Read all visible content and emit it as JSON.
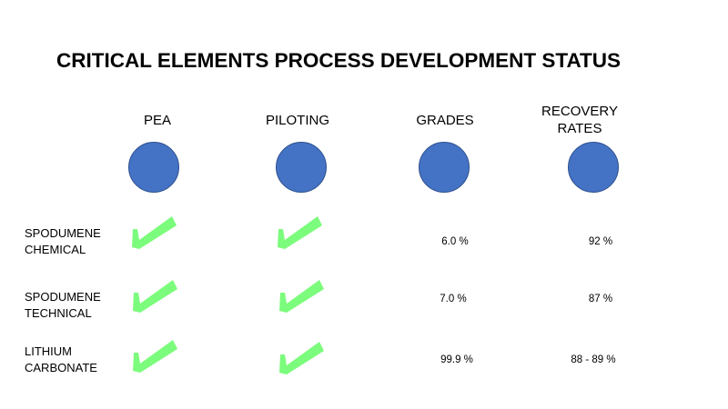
{
  "title": "CRITICAL ELEMENTS PROCESS DEVELOPMENT STATUS",
  "columns": [
    {
      "line1": "PEA",
      "line2": ""
    },
    {
      "line1": "PILOTING",
      "line2": ""
    },
    {
      "line1": "GRADES",
      "line2": ""
    },
    {
      "line1": "RECOVERY",
      "line2": "RATES"
    }
  ],
  "rows": [
    {
      "label_line1": "SPODUMENE",
      "label_line2": "CHEMICAL",
      "pea": "checked",
      "piloting": "checked",
      "grade": "6.0 %",
      "recovery": "92 %"
    },
    {
      "label_line1": "SPODUMENE",
      "label_line2": "TECHNICAL",
      "pea": "checked",
      "piloting": "checked",
      "grade": "7.0 %",
      "recovery": "87 %"
    },
    {
      "label_line1": "LITHIUM",
      "label_line2": "CARBONATE",
      "pea": "checked",
      "piloting": "checked",
      "grade": "99.9 %",
      "recovery": "88 - 89 %"
    }
  ],
  "colors": {
    "circle": "#4472c4",
    "check": "#7cfc7c"
  },
  "icons": {
    "circle": "status-circle",
    "check": "checkmark-icon"
  }
}
